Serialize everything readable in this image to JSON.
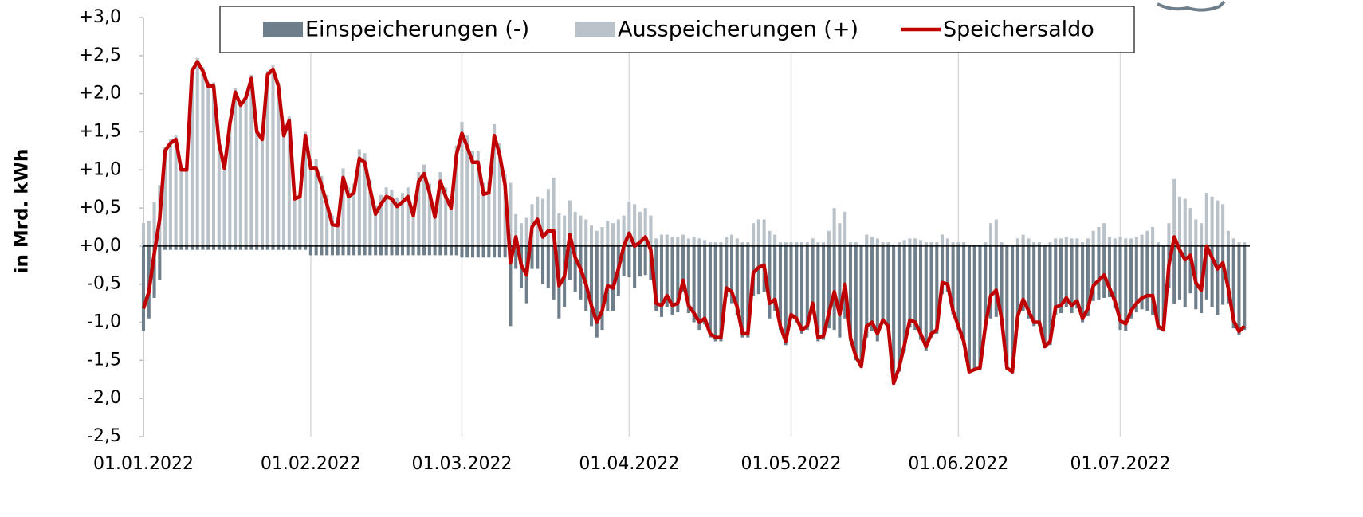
{
  "chart_data": {
    "type": "bar-line",
    "y_label": "in Mrd. kWh",
    "legend": "top",
    "x": [
      "01.01.2022",
      "02.01.2022",
      "03.01.2022",
      "04.01.2022",
      "05.01.2022",
      "06.01.2022",
      "07.01.2022",
      "08.01.2022",
      "09.01.2022",
      "10.01.2022",
      "11.01.2022",
      "12.01.2022",
      "13.01.2022",
      "14.01.2022",
      "15.01.2022",
      "16.01.2022",
      "17.01.2022",
      "18.01.2022",
      "19.01.2022",
      "20.01.2022",
      "21.01.2022",
      "22.01.2022",
      "23.01.2022",
      "24.01.2022",
      "25.01.2022",
      "26.01.2022",
      "27.01.2022",
      "28.01.2022",
      "29.01.2022",
      "30.01.2022",
      "31.01.2022",
      "01.02.2022",
      "02.02.2022",
      "03.02.2022",
      "04.02.2022",
      "05.02.2022",
      "06.02.2022",
      "07.02.2022",
      "08.02.2022",
      "09.02.2022",
      "10.02.2022",
      "11.02.2022",
      "12.02.2022",
      "13.02.2022",
      "14.02.2022",
      "15.02.2022",
      "16.02.2022",
      "17.02.2022",
      "18.02.2022",
      "19.02.2022",
      "20.02.2022",
      "21.02.2022",
      "22.02.2022",
      "23.02.2022",
      "24.02.2022",
      "25.02.2022",
      "26.02.2022",
      "27.02.2022",
      "28.02.2022",
      "01.03.2022",
      "02.03.2022",
      "03.03.2022",
      "04.03.2022",
      "05.03.2022",
      "06.03.2022",
      "07.03.2022",
      "08.03.2022",
      "09.03.2022",
      "10.03.2022",
      "11.03.2022",
      "12.03.2022",
      "13.03.2022",
      "14.03.2022",
      "15.03.2022",
      "16.03.2022",
      "17.03.2022",
      "18.03.2022",
      "19.03.2022",
      "20.03.2022",
      "21.03.2022",
      "22.03.2022",
      "23.03.2022",
      "24.03.2022",
      "25.03.2022",
      "26.03.2022",
      "27.03.2022",
      "28.03.2022",
      "29.03.2022",
      "30.03.2022",
      "31.03.2022",
      "01.04.2022",
      "02.04.2022",
      "03.04.2022",
      "04.04.2022",
      "05.04.2022",
      "06.04.2022",
      "07.04.2022",
      "08.04.2022",
      "09.04.2022",
      "10.04.2022",
      "11.04.2022",
      "12.04.2022",
      "13.04.2022",
      "14.04.2022",
      "15.04.2022",
      "16.04.2022",
      "17.04.2022",
      "18.04.2022",
      "19.04.2022",
      "20.04.2022",
      "21.04.2022",
      "22.04.2022",
      "23.04.2022",
      "24.04.2022",
      "25.04.2022",
      "26.04.2022",
      "27.04.2022",
      "28.04.2022",
      "29.04.2022",
      "30.04.2022",
      "01.05.2022",
      "02.05.2022",
      "03.05.2022",
      "04.05.2022",
      "05.05.2022",
      "06.05.2022",
      "07.05.2022",
      "08.05.2022",
      "09.05.2022",
      "10.05.2022",
      "11.05.2022",
      "12.05.2022",
      "13.05.2022",
      "14.05.2022",
      "15.05.2022",
      "16.05.2022",
      "17.05.2022",
      "18.05.2022",
      "19.05.2022",
      "20.05.2022",
      "21.05.2022",
      "22.05.2022",
      "23.05.2022",
      "24.05.2022",
      "25.05.2022",
      "26.05.2022",
      "27.05.2022",
      "28.05.2022",
      "29.05.2022",
      "30.05.2022",
      "31.05.2022",
      "01.06.2022",
      "02.06.2022",
      "03.06.2022",
      "04.06.2022",
      "05.06.2022",
      "06.06.2022",
      "07.06.2022",
      "08.06.2022",
      "09.06.2022",
      "10.06.2022",
      "11.06.2022",
      "12.06.2022",
      "13.06.2022",
      "14.06.2022",
      "15.06.2022",
      "16.06.2022",
      "17.06.2022",
      "18.06.2022",
      "19.06.2022",
      "20.06.2022",
      "21.06.2022",
      "22.06.2022",
      "23.06.2022",
      "24.06.2022",
      "25.06.2022",
      "26.06.2022",
      "27.06.2022",
      "28.06.2022",
      "29.06.2022",
      "30.06.2022",
      "01.07.2022",
      "02.07.2022",
      "03.07.2022",
      "04.07.2022",
      "05.07.2022",
      "06.07.2022",
      "07.07.2022",
      "08.07.2022",
      "09.07.2022",
      "10.07.2022",
      "11.07.2022",
      "12.07.2022",
      "13.07.2022",
      "14.07.2022",
      "15.07.2022",
      "16.07.2022",
      "17.07.2022",
      "18.07.2022",
      "19.07.2022",
      "20.07.2022",
      "21.07.2022",
      "22.07.2022",
      "23.07.2022",
      "24.07.2022"
    ],
    "series": [
      {
        "name": "Einspeicherungen (-)",
        "color": "#6e7e8b",
        "kind": "bar",
        "values": [
          -1.12,
          -0.95,
          -0.68,
          -0.45,
          -0.05,
          -0.05,
          -0.05,
          -0.05,
          -0.05,
          -0.05,
          -0.05,
          -0.05,
          -0.05,
          -0.05,
          -0.05,
          -0.05,
          -0.05,
          -0.05,
          -0.05,
          -0.05,
          -0.05,
          -0.05,
          -0.05,
          -0.05,
          -0.05,
          -0.05,
          -0.05,
          -0.05,
          -0.05,
          -0.05,
          -0.05,
          -0.12,
          -0.12,
          -0.12,
          -0.12,
          -0.12,
          -0.12,
          -0.12,
          -0.12,
          -0.12,
          -0.12,
          -0.12,
          -0.12,
          -0.12,
          -0.12,
          -0.12,
          -0.12,
          -0.12,
          -0.12,
          -0.12,
          -0.12,
          -0.12,
          -0.12,
          -0.12,
          -0.12,
          -0.12,
          -0.12,
          -0.12,
          -0.12,
          -0.15,
          -0.15,
          -0.15,
          -0.15,
          -0.15,
          -0.15,
          -0.15,
          -0.15,
          -0.15,
          -1.05,
          -0.3,
          -0.55,
          -0.75,
          -0.3,
          -0.3,
          -0.5,
          -0.55,
          -0.7,
          -0.95,
          -0.8,
          -0.45,
          -0.6,
          -0.7,
          -0.85,
          -1.05,
          -1.2,
          -1.1,
          -0.85,
          -0.85,
          -0.65,
          -0.4,
          -0.41,
          -0.55,
          -0.4,
          -0.38,
          -0.45,
          -0.85,
          -0.93,
          -0.8,
          -0.9,
          -0.87,
          -0.6,
          -0.88,
          -1.0,
          -1.1,
          -1.03,
          -1.2,
          -1.25,
          -1.25,
          -0.67,
          -0.75,
          -0.9,
          -1.2,
          -1.2,
          -0.65,
          -0.63,
          -0.6,
          -0.95,
          -0.85,
          -1.1,
          -1.3,
          -0.95,
          -1.0,
          -1.15,
          -1.1,
          -0.85,
          -1.25,
          -1.23,
          -1.08,
          -1.1,
          -1.2,
          -0.95,
          -1.25,
          -1.5,
          -1.6,
          -1.2,
          -1.12,
          -1.25,
          -1.02,
          -1.1,
          -1.82,
          -1.65,
          -1.38,
          -1.07,
          -1.1,
          -1.23,
          -1.37,
          -1.2,
          -1.15,
          -0.63,
          -0.6,
          -0.9,
          -1.1,
          -1.3,
          -1.67,
          -1.64,
          -1.62,
          -1.1,
          -0.95,
          -0.93,
          -1.0,
          -1.62,
          -1.67,
          -1.02,
          -0.85,
          -0.95,
          -1.05,
          -1.05,
          -1.34,
          -1.3,
          -0.9,
          -0.88,
          -0.8,
          -0.88,
          -0.82,
          -1.0,
          -0.92,
          -0.72,
          -0.7,
          -0.68,
          -0.67,
          -0.82,
          -1.1,
          -1.12,
          -0.95,
          -0.87,
          -0.83,
          -0.85,
          -0.9,
          -1.1,
          -1.12,
          -0.55,
          -0.76,
          -0.7,
          -0.8,
          -0.62,
          -0.83,
          -0.88,
          -0.7,
          -0.8,
          -0.9,
          -0.77,
          -0.75,
          -1.08,
          -1.17,
          -1.1
        ]
      },
      {
        "name": "Ausspeicherungen (+)",
        "color": "#b9c1c9",
        "kind": "bar",
        "values": [
          0.3,
          0.33,
          0.58,
          0.8,
          1.3,
          1.4,
          1.45,
          1.05,
          1.05,
          2.35,
          2.47,
          2.35,
          2.15,
          2.15,
          1.4,
          1.07,
          1.65,
          2.07,
          1.9,
          2.0,
          2.25,
          1.55,
          1.45,
          2.3,
          2.37,
          2.15,
          1.5,
          1.7,
          0.67,
          0.7,
          1.5,
          1.14,
          1.14,
          0.92,
          0.67,
          0.4,
          0.39,
          1.02,
          0.77,
          0.82,
          1.27,
          1.22,
          0.87,
          0.54,
          0.67,
          0.77,
          0.74,
          0.64,
          0.7,
          0.77,
          0.52,
          0.97,
          1.07,
          0.82,
          0.5,
          0.97,
          0.77,
          0.62,
          1.32,
          1.63,
          1.45,
          1.25,
          1.25,
          0.83,
          0.85,
          1.6,
          1.35,
          0.95,
          0.83,
          0.42,
          0.3,
          0.37,
          0.55,
          0.65,
          0.62,
          0.75,
          0.9,
          0.43,
          0.4,
          0.6,
          0.45,
          0.4,
          0.35,
          0.27,
          0.2,
          0.25,
          0.33,
          0.3,
          0.35,
          0.4,
          0.58,
          0.55,
          0.45,
          0.5,
          0.4,
          0.1,
          0.15,
          0.15,
          0.12,
          0.12,
          0.15,
          0.1,
          0.12,
          0.1,
          0.08,
          0.05,
          0.05,
          0.05,
          0.12,
          0.15,
          0.1,
          0.05,
          0.05,
          0.3,
          0.35,
          0.35,
          0.2,
          0.15,
          0.05,
          0.05,
          0.05,
          0.05,
          0.05,
          0.05,
          0.1,
          0.05,
          0.05,
          0.2,
          0.5,
          0.3,
          0.45,
          0.05,
          0.05,
          0.02,
          0.15,
          0.12,
          0.1,
          0.05,
          0.05,
          0.02,
          0.05,
          0.08,
          0.1,
          0.1,
          0.08,
          0.05,
          0.05,
          0.05,
          0.15,
          0.1,
          0.05,
          0.05,
          0.05,
          0.02,
          0.02,
          0.02,
          0.05,
          0.3,
          0.35,
          0.05,
          0.02,
          0.02,
          0.1,
          0.15,
          0.1,
          0.05,
          0.05,
          0.02,
          0.05,
          0.1,
          0.1,
          0.12,
          0.1,
          0.1,
          0.05,
          0.1,
          0.2,
          0.25,
          0.3,
          0.12,
          0.1,
          0.12,
          0.1,
          0.1,
          0.12,
          0.15,
          0.2,
          0.25,
          0.05,
          0.02,
          0.3,
          0.88,
          0.65,
          0.62,
          0.5,
          0.35,
          0.3,
          0.7,
          0.65,
          0.6,
          0.55,
          0.2,
          0.1,
          0.05,
          0.05
        ]
      },
      {
        "name": "Speichersaldo",
        "color": "#c00000",
        "kind": "line",
        "values": [
          -0.82,
          -0.6,
          -0.1,
          0.35,
          1.25,
          1.35,
          1.4,
          1.0,
          1.0,
          2.3,
          2.42,
          2.3,
          2.1,
          2.1,
          1.35,
          1.02,
          1.6,
          2.02,
          1.85,
          1.95,
          2.2,
          1.5,
          1.4,
          2.25,
          2.32,
          2.1,
          1.45,
          1.65,
          0.62,
          0.65,
          1.45,
          1.02,
          1.02,
          0.8,
          0.55,
          0.28,
          0.27,
          0.9,
          0.65,
          0.7,
          1.15,
          1.1,
          0.75,
          0.42,
          0.55,
          0.65,
          0.62,
          0.52,
          0.58,
          0.65,
          0.4,
          0.85,
          0.95,
          0.7,
          0.38,
          0.85,
          0.65,
          0.5,
          1.2,
          1.48,
          1.3,
          1.1,
          1.1,
          0.68,
          0.7,
          1.45,
          1.2,
          0.8,
          -0.22,
          0.12,
          -0.25,
          -0.38,
          0.25,
          0.35,
          0.12,
          0.2,
          0.2,
          -0.52,
          -0.4,
          0.15,
          -0.15,
          -0.3,
          -0.5,
          -0.78,
          -1.0,
          -0.85,
          -0.52,
          -0.55,
          -0.3,
          0.0,
          0.17,
          0.0,
          0.05,
          0.12,
          -0.05,
          -0.75,
          -0.78,
          -0.65,
          -0.78,
          -0.75,
          -0.45,
          -0.78,
          -0.88,
          -1.0,
          -0.95,
          -1.15,
          -1.2,
          -1.2,
          -0.55,
          -0.6,
          -0.8,
          -1.15,
          -1.15,
          -0.35,
          -0.28,
          -0.25,
          -0.75,
          -0.7,
          -1.05,
          -1.25,
          -0.9,
          -0.95,
          -1.1,
          -1.05,
          -0.75,
          -1.2,
          -1.18,
          -0.88,
          -0.6,
          -0.9,
          -0.5,
          -1.2,
          -1.45,
          -1.58,
          -1.05,
          -1.0,
          -1.15,
          -0.97,
          -1.05,
          -1.8,
          -1.6,
          -1.3,
          -0.97,
          -1.0,
          -1.15,
          -1.32,
          -1.15,
          -1.1,
          -0.48,
          -0.5,
          -0.85,
          -1.05,
          -1.25,
          -1.65,
          -1.62,
          -1.6,
          -1.05,
          -0.65,
          -0.58,
          -0.95,
          -1.6,
          -1.65,
          -0.92,
          -0.7,
          -0.85,
          -1.0,
          -1.0,
          -1.32,
          -1.25,
          -0.8,
          -0.78,
          -0.68,
          -0.78,
          -0.72,
          -0.95,
          -0.82,
          -0.52,
          -0.45,
          -0.38,
          -0.55,
          -0.72,
          -0.98,
          -1.02,
          -0.85,
          -0.75,
          -0.68,
          -0.65,
          -0.65,
          -1.05,
          -1.1,
          -0.25,
          0.12,
          -0.05,
          -0.18,
          -0.12,
          -0.48,
          -0.58,
          0.0,
          -0.15,
          -0.3,
          -0.22,
          -0.55,
          -0.98,
          -1.12,
          -1.05
        ]
      }
    ],
    "xlim": [
      "01.01.2022",
      "25.07.2022"
    ],
    "xticks": [
      "01.01.2022",
      "01.02.2022",
      "01.03.2022",
      "01.04.2022",
      "01.05.2022",
      "01.06.2022",
      "01.07.2022"
    ],
    "ylim": [
      -2.5,
      3
    ],
    "yticks": [
      {
        "value": 3,
        "label": "+3,0"
      },
      {
        "value": 2.5,
        "label": "+2,5"
      },
      {
        "value": 2,
        "label": "+2,0"
      },
      {
        "value": 1.5,
        "label": "+1,5"
      },
      {
        "value": 1,
        "label": "+1,0"
      },
      {
        "value": 0.5,
        "label": "+0,5"
      },
      {
        "value": 0,
        "label": "+0,0"
      },
      {
        "value": -0.5,
        "label": "-0,5"
      },
      {
        "value": -1,
        "label": "-1,0"
      },
      {
        "value": -1.5,
        "label": "-1,5"
      },
      {
        "value": -2,
        "label": "-2,0"
      },
      {
        "value": -2.5,
        "label": "-2,5"
      }
    ],
    "grid": "x"
  }
}
